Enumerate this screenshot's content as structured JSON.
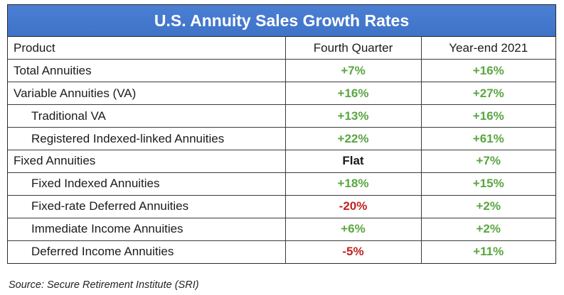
{
  "title": "U.S. Annuity Sales Growth Rates",
  "header": {
    "product": "Product",
    "q4": "Fourth Quarter",
    "ye": "Year-end 2021"
  },
  "rows": [
    {
      "product": "Total Annuities",
      "q4": "+7%",
      "ye": "+16%"
    },
    {
      "product": "Variable Annuities (VA)",
      "q4": "+16%",
      "ye": "+27%"
    },
    {
      "product": "Traditional VA",
      "q4": "+13%",
      "ye": "+16%"
    },
    {
      "product": "Registered Indexed-linked Annuities",
      "q4": "+22%",
      "ye": "+61%"
    },
    {
      "product": "Fixed Annuities",
      "q4": "Flat",
      "ye": "+7%"
    },
    {
      "product": "Fixed Indexed Annuities",
      "q4": "+18%",
      "ye": "+15%"
    },
    {
      "product": "Fixed-rate Deferred Annuities",
      "q4": "-20%",
      "ye": "+2%"
    },
    {
      "product": "Immediate Income Annuities",
      "q4": "+6%",
      "ye": "+2%"
    },
    {
      "product": "Deferred Income Annuities",
      "q4": "-5%",
      "ye": "+11%"
    }
  ],
  "source": "Source: Secure Retirement Institute (SRI)",
  "colors": {
    "title_bg": "#4479cd",
    "positive": "#5aa641",
    "negative": "#c0221f",
    "neutral": "#1b1b1b"
  }
}
